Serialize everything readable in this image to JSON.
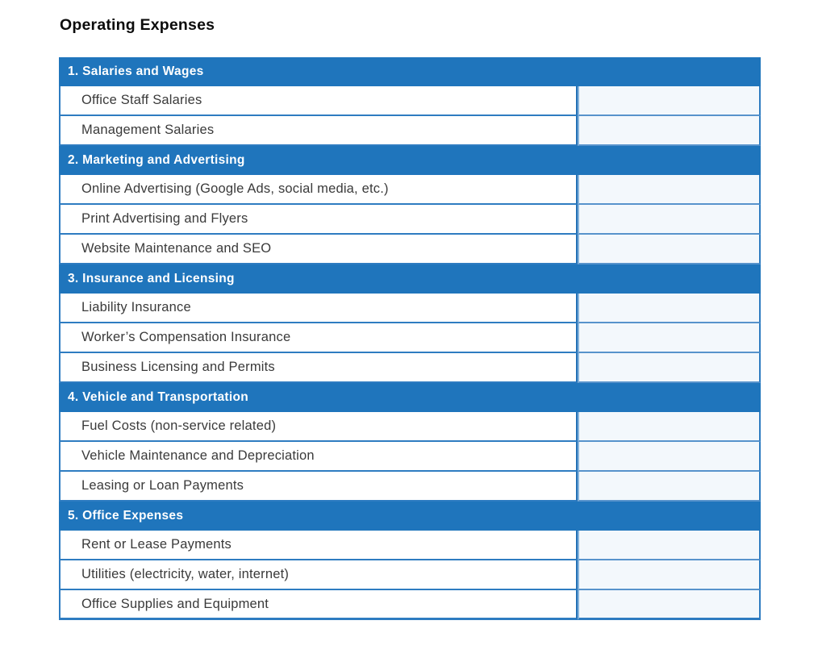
{
  "page": {
    "title": "Operating Expenses"
  },
  "colors": {
    "header_blue": "#1f75bc",
    "border_blue": "#2e7cc1",
    "value_cell_bg": "#f3f8fc",
    "row_text": "#3a3a3a",
    "header_text": "#ffffff",
    "title_text": "#0c0c0c"
  },
  "table": {
    "sections": [
      {
        "heading": "1. Salaries and Wages",
        "rows": [
          {
            "label": "Office Staff Salaries",
            "value": ""
          },
          {
            "label": "Management Salaries",
            "value": ""
          }
        ]
      },
      {
        "heading": "2. Marketing and Advertising",
        "rows": [
          {
            "label": "Online Advertising (Google Ads, social media, etc.)",
            "value": ""
          },
          {
            "label": "Print Advertising and Flyers",
            "value": ""
          },
          {
            "label": "Website Maintenance and SEO",
            "value": ""
          }
        ]
      },
      {
        "heading": "3. Insurance and Licensing",
        "rows": [
          {
            "label": "Liability Insurance",
            "value": ""
          },
          {
            "label": "Worker’s Compensation Insurance",
            "value": ""
          },
          {
            "label": "Business Licensing and Permits",
            "value": ""
          }
        ]
      },
      {
        "heading": "4. Vehicle and Transportation",
        "rows": [
          {
            "label": "Fuel Costs (non-service related)",
            "value": ""
          },
          {
            "label": "Vehicle Maintenance and Depreciation",
            "value": ""
          },
          {
            "label": "Leasing or Loan Payments",
            "value": ""
          }
        ]
      },
      {
        "heading": "5. Office Expenses",
        "rows": [
          {
            "label": "Rent or Lease Payments",
            "value": ""
          },
          {
            "label": "Utilities (electricity, water, internet)",
            "value": ""
          },
          {
            "label": "Office Supplies and Equipment",
            "value": ""
          }
        ]
      }
    ]
  }
}
